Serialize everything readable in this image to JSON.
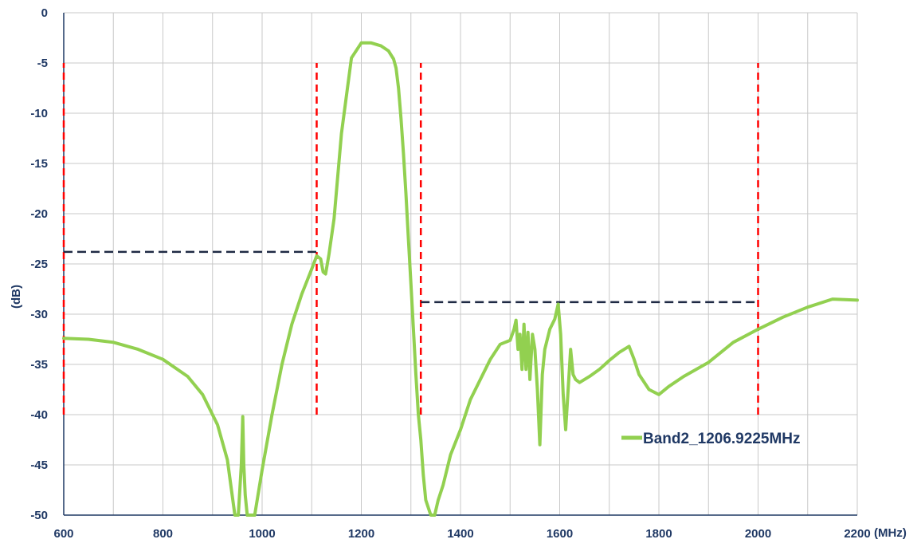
{
  "chart_data": {
    "type": "line",
    "title": "",
    "xlabel": "",
    "x_unit_label": "(MHz)",
    "ylabel": "(dB)",
    "xlim": [
      600,
      2200
    ],
    "ylim": [
      -50,
      0
    ],
    "x_ticks": [
      600,
      800,
      1000,
      1200,
      1400,
      1600,
      1800,
      2000,
      2200
    ],
    "y_ticks": [
      0,
      -5,
      -10,
      -15,
      -20,
      -25,
      -30,
      -35,
      -40,
      -45,
      -50
    ],
    "x_tick_labels": [
      "600",
      "800",
      "1000",
      "1200",
      "1400",
      "1600",
      "1800",
      "2000",
      "2200"
    ],
    "y_tick_labels": [
      "0",
      "-5",
      "-10",
      "-15",
      "-20",
      "-25",
      "-30",
      "-35",
      "-40",
      "-45",
      "-50"
    ],
    "x_grid_step": 100,
    "y_grid_step": 5,
    "grid": true,
    "legend_position": "lower-right",
    "series": [
      {
        "name": "Band2_1206.9225MHz",
        "color": "#92d050",
        "x": [
          600,
          650,
          700,
          750,
          800,
          850,
          880,
          910,
          930,
          945,
          952,
          958,
          961,
          963,
          966,
          970,
          975,
          985,
          1000,
          1020,
          1040,
          1060,
          1080,
          1100,
          1110,
          1118,
          1123,
          1128,
          1135,
          1145,
          1160,
          1180,
          1200,
          1220,
          1240,
          1255,
          1260,
          1265,
          1270,
          1275,
          1280,
          1285,
          1290,
          1295,
          1300,
          1305,
          1310,
          1315,
          1320,
          1325,
          1330,
          1340,
          1348,
          1355,
          1365,
          1380,
          1400,
          1420,
          1440,
          1460,
          1480,
          1500,
          1508,
          1512,
          1516,
          1520,
          1524,
          1528,
          1532,
          1536,
          1540,
          1545,
          1550,
          1555,
          1560,
          1565,
          1570,
          1580,
          1590,
          1597,
          1602,
          1607,
          1612,
          1617,
          1622,
          1627,
          1632,
          1640,
          1660,
          1680,
          1700,
          1720,
          1740,
          1750,
          1760,
          1780,
          1800,
          1820,
          1850,
          1900,
          1950,
          2000,
          2050,
          2100,
          2150,
          2200
        ],
        "y": [
          -32.4,
          -32.5,
          -32.8,
          -33.5,
          -34.5,
          -36.2,
          -38.0,
          -41.0,
          -44.5,
          -50.0,
          -52.0,
          -45.0,
          -40.2,
          -45.0,
          -48.0,
          -51.0,
          -52.0,
          -50.0,
          -45.5,
          -40.0,
          -35.0,
          -31.0,
          -28.0,
          -25.5,
          -24.2,
          -24.5,
          -25.8,
          -26.0,
          -24.0,
          -20.5,
          -12.0,
          -4.5,
          -3.0,
          -3.0,
          -3.3,
          -3.8,
          -4.2,
          -4.6,
          -5.5,
          -7.5,
          -10.5,
          -14.0,
          -18.0,
          -22.5,
          -27.0,
          -31.5,
          -36.0,
          -40.0,
          -42.5,
          -46.0,
          -48.5,
          -52.0,
          -50.5,
          -48.5,
          -47.0,
          -44.0,
          -41.5,
          -38.5,
          -36.5,
          -34.5,
          -33.0,
          -32.6,
          -31.5,
          -30.6,
          -33.5,
          -32.0,
          -35.5,
          -31.0,
          -35.5,
          -31.8,
          -36.5,
          -32.0,
          -33.5,
          -37.5,
          -43.0,
          -36.0,
          -33.5,
          -31.5,
          -30.5,
          -29.0,
          -32.0,
          -38.0,
          -41.5,
          -37.5,
          -33.5,
          -36.0,
          -36.5,
          -36.8,
          -36.2,
          -35.5,
          -34.6,
          -33.8,
          -33.2,
          -34.5,
          -36.0,
          -37.5,
          -38.0,
          -37.2,
          -36.2,
          -34.8,
          -32.8,
          -31.5,
          -30.3,
          -29.3,
          -28.5,
          -28.6
        ]
      }
    ],
    "annotations": {
      "vertical_lines": {
        "color": "#ff0000",
        "x": [
          600,
          1110,
          1320,
          2000
        ],
        "y_from": -40,
        "y_to": -5
      },
      "horizontal_lines": {
        "color": "#1f2a44",
        "segments": [
          {
            "x1": 600,
            "x2": 1110,
            "y": -23.8
          },
          {
            "x1": 1320,
            "x2": 2000,
            "y": -28.8
          }
        ]
      }
    }
  }
}
